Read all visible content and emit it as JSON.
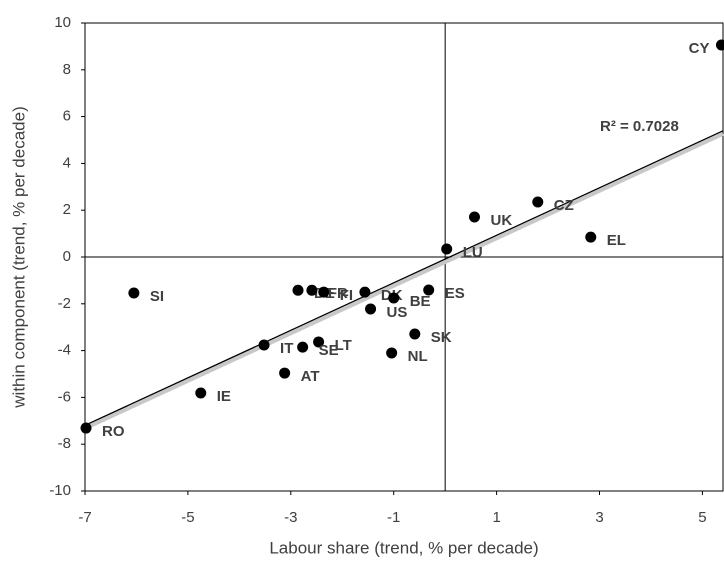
{
  "chart_data": {
    "type": "scatter",
    "x_label": "Labour share (trend, % per decade)",
    "y_label": "within component (trend, % per decade)",
    "annotation": "R² = 0.7028",
    "color": "#000000",
    "trendline_color": "#000000",
    "xlim": [
      -7,
      5.4
    ],
    "xticks": [
      -7,
      -5,
      -3,
      -1,
      1,
      3,
      5
    ],
    "ylim": [
      -10,
      10
    ],
    "yticks": [
      -10,
      -8,
      -6,
      -4,
      -2,
      0,
      2,
      4,
      6,
      8,
      10
    ],
    "labels": [
      "CY",
      "UK",
      "CZ",
      "EL",
      "LU",
      "SI",
      "DE",
      "FR",
      "FI",
      "DK",
      "BE",
      "US",
      "ES",
      "SK",
      "NL",
      "LT",
      "SE",
      "IT",
      "AT",
      "IE",
      "RO"
    ],
    "x": [
      5.37,
      0.57,
      1.8,
      2.83,
      0.03,
      -6.05,
      -2.86,
      -2.59,
      -2.36,
      -1.56,
      -1.0,
      -1.45,
      -0.32,
      -0.59,
      -1.04,
      -2.46,
      -2.77,
      -3.52,
      -3.12,
      -4.75,
      -6.98
    ],
    "values": [
      9.06,
      1.71,
      2.35,
      0.85,
      0.34,
      -1.54,
      -1.42,
      -1.42,
      -1.5,
      -1.5,
      -1.75,
      -2.22,
      -1.41,
      -3.29,
      -4.1,
      -3.63,
      -3.85,
      -3.76,
      -4.96,
      -5.81,
      -7.31
    ]
  }
}
